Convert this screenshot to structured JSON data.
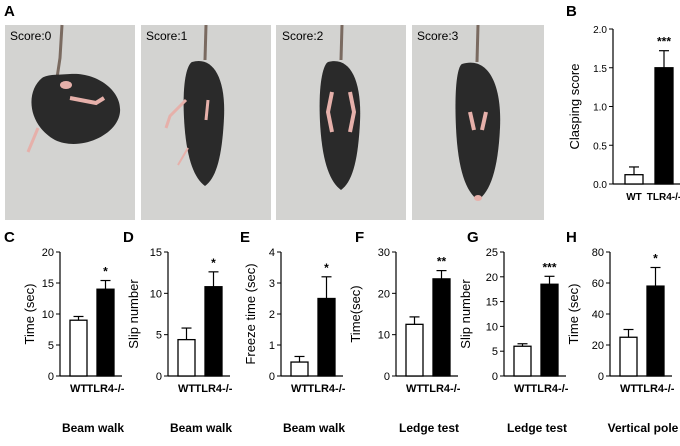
{
  "figure": {
    "panel_letters": {
      "A": "A",
      "B": "B",
      "C": "C",
      "D": "D",
      "E": "E",
      "F": "F",
      "G": "G",
      "H": "H"
    },
    "photos": [
      {
        "id": "score0",
        "label": "Score:0"
      },
      {
        "id": "score1",
        "label": "Score:1"
      },
      {
        "id": "score2",
        "label": "Score:2"
      },
      {
        "id": "score3",
        "label": "Score:3"
      }
    ],
    "colors": {
      "wt": "#ffffff",
      "tlr4": "#000000",
      "photo_bg": "#d3d3d1",
      "mouse": "#2a2a2a",
      "tail": "#7a6a60",
      "paw": "#e6b0aa"
    }
  },
  "chart_data": [
    {
      "id": "B",
      "type": "bar",
      "title": "",
      "categories": [
        "WT",
        "TLR4-/-"
      ],
      "values": [
        0.12,
        1.5
      ],
      "errors": [
        0.1,
        0.22
      ],
      "ylabel": "Clasping score",
      "xlabel": "",
      "ylim": [
        0,
        2.0
      ],
      "yticks": [
        "0.0",
        "0.5",
        "1.0",
        "1.5",
        "2.0"
      ],
      "significance": "***"
    },
    {
      "id": "C",
      "type": "bar",
      "title": "",
      "categories": [
        "WT",
        "TLR4-/-"
      ],
      "values": [
        9.0,
        14.0
      ],
      "errors": [
        0.6,
        1.4
      ],
      "ylabel": "Time (sec)",
      "xlabel": "Beam walk",
      "ylim": [
        0,
        20
      ],
      "yticks": [
        "0",
        "5",
        "10",
        "15",
        "20"
      ],
      "significance": "*"
    },
    {
      "id": "D",
      "type": "bar",
      "title": "",
      "categories": [
        "WT",
        "TLR4-/-"
      ],
      "values": [
        4.4,
        10.8
      ],
      "errors": [
        1.4,
        1.8
      ],
      "ylabel": "Slip number",
      "xlabel": "Beam walk",
      "ylim": [
        0,
        15
      ],
      "yticks": [
        "0",
        "5",
        "10",
        "15"
      ],
      "significance": "*"
    },
    {
      "id": "E",
      "type": "bar",
      "title": "",
      "categories": [
        "WT",
        "TLR4-/-"
      ],
      "values": [
        0.45,
        2.5
      ],
      "errors": [
        0.18,
        0.7
      ],
      "ylabel": "Freeze time (sec)",
      "xlabel": "Beam walk",
      "ylim": [
        0,
        4
      ],
      "yticks": [
        "0",
        "1",
        "2",
        "3",
        "4"
      ],
      "significance": "*"
    },
    {
      "id": "F",
      "type": "bar",
      "title": "",
      "categories": [
        "WT",
        "TLR4-/-"
      ],
      "values": [
        12.5,
        23.5
      ],
      "errors": [
        1.8,
        2.0
      ],
      "ylabel": "Time(sec)",
      "xlabel": "Ledge test",
      "ylim": [
        0,
        30
      ],
      "yticks": [
        "0",
        "10",
        "20",
        "30"
      ],
      "significance": "**"
    },
    {
      "id": "G",
      "type": "bar",
      "title": "",
      "categories": [
        "WT",
        "TLR4-/-"
      ],
      "values": [
        6.0,
        18.5
      ],
      "errors": [
        0.5,
        1.6
      ],
      "ylabel": "Slip number",
      "xlabel": "Ledge test",
      "ylim": [
        0,
        25
      ],
      "yticks": [
        "0",
        "5",
        "10",
        "15",
        "20",
        "25"
      ],
      "significance": "***"
    },
    {
      "id": "H",
      "type": "bar",
      "title": "",
      "categories": [
        "WT",
        "TLR4-/-"
      ],
      "values": [
        25,
        58
      ],
      "errors": [
        5,
        12
      ],
      "ylabel": "Time (sec)",
      "xlabel": "Vertical pole",
      "ylim": [
        0,
        80
      ],
      "yticks": [
        "0",
        "20",
        "40",
        "60",
        "80"
      ],
      "significance": "*"
    }
  ]
}
